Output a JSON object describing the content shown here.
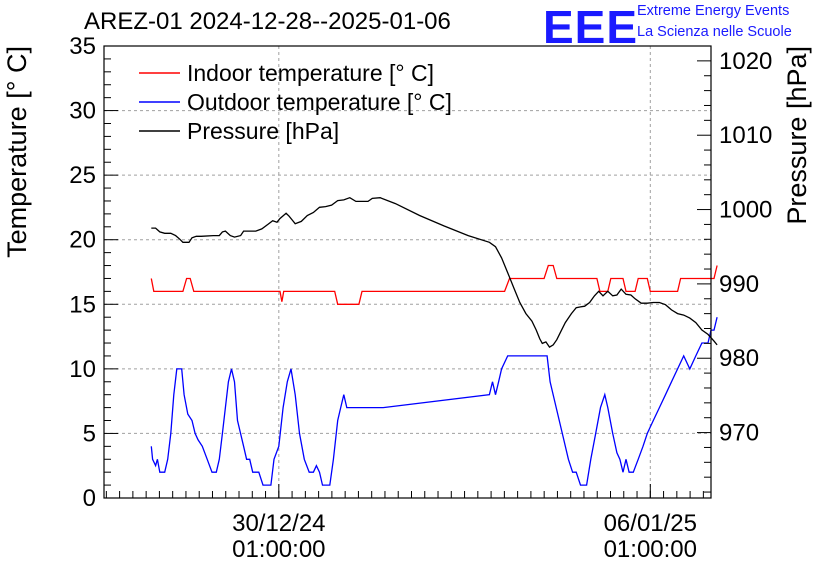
{
  "page": {
    "title": "AREZ-01 2024-12-28--2025-01-06",
    "logo_text": "EEE",
    "logo_line1": "Extreme Energy Events",
    "logo_line2": "La Scienza nelle Scuole"
  },
  "colors": {
    "indoor": "#ff0000",
    "outdoor": "#0000ff",
    "pressure": "#000000",
    "logo": "#1a1aff",
    "grid": "#a0a0a0"
  },
  "chart_data": {
    "type": "line",
    "title": "AREZ-01 2024-12-28--2025-01-06",
    "xlabel": "",
    "ylabel": "Temperature [° C]",
    "y2label": "Pressure [hPa]",
    "ylim": [
      0,
      35
    ],
    "y2lim": [
      961.2,
      1022.0
    ],
    "yticks": [
      0,
      5,
      10,
      15,
      20,
      25,
      30,
      35
    ],
    "y2ticks": [
      970,
      980,
      990,
      1000,
      1010,
      1020
    ],
    "xlim": [
      0,
      10
    ],
    "xticks": [
      {
        "x": 2.88,
        "label": "30/12/24",
        "label2": "01:00:00"
      },
      {
        "x": 9.0,
        "label": "06/01/25",
        "label2": "01:00:00"
      }
    ],
    "grid": true,
    "legend_position": "top-left",
    "legend": [
      "Indoor temperature [° C]",
      "Outdoor temperature [° C]",
      "Pressure [hPa]"
    ],
    "series": [
      {
        "name": "Indoor temperature [° C]",
        "axis": "left",
        "points": [
          [
            0.78,
            17
          ],
          [
            0.82,
            16
          ],
          [
            1.3,
            16
          ],
          [
            1.36,
            17
          ],
          [
            1.42,
            17
          ],
          [
            1.48,
            16
          ],
          [
            2.9,
            16
          ],
          [
            2.93,
            15.2
          ],
          [
            2.96,
            16
          ],
          [
            3.8,
            16
          ],
          [
            3.85,
            15
          ],
          [
            4.2,
            15
          ],
          [
            4.25,
            16
          ],
          [
            6.6,
            16
          ],
          [
            6.68,
            17
          ],
          [
            7.25,
            17
          ],
          [
            7.32,
            18
          ],
          [
            7.4,
            18
          ],
          [
            7.46,
            17
          ],
          [
            8.12,
            17
          ],
          [
            8.17,
            16
          ],
          [
            8.3,
            16
          ],
          [
            8.35,
            17
          ],
          [
            8.55,
            17
          ],
          [
            8.6,
            16
          ],
          [
            8.75,
            16
          ],
          [
            8.8,
            17
          ],
          [
            8.95,
            17
          ],
          [
            9.0,
            16
          ],
          [
            9.45,
            16
          ],
          [
            9.5,
            17
          ],
          [
            10.05,
            17
          ],
          [
            10.1,
            18
          ]
        ]
      },
      {
        "name": "Outdoor temperature [° C]",
        "axis": "left",
        "points": [
          [
            0.78,
            4
          ],
          [
            0.8,
            3
          ],
          [
            0.85,
            2.5
          ],
          [
            0.88,
            3
          ],
          [
            0.92,
            2
          ],
          [
            1.0,
            2
          ],
          [
            1.05,
            3
          ],
          [
            1.1,
            5
          ],
          [
            1.15,
            8
          ],
          [
            1.2,
            10
          ],
          [
            1.28,
            10
          ],
          [
            1.32,
            8
          ],
          [
            1.38,
            6.5
          ],
          [
            1.45,
            6
          ],
          [
            1.5,
            5
          ],
          [
            1.55,
            4.5
          ],
          [
            1.62,
            4
          ],
          [
            1.7,
            3
          ],
          [
            1.78,
            2
          ],
          [
            1.85,
            2
          ],
          [
            1.9,
            3
          ],
          [
            1.95,
            5
          ],
          [
            2.0,
            7
          ],
          [
            2.05,
            9
          ],
          [
            2.1,
            10
          ],
          [
            2.15,
            9
          ],
          [
            2.2,
            6
          ],
          [
            2.3,
            4
          ],
          [
            2.35,
            3
          ],
          [
            2.4,
            3
          ],
          [
            2.45,
            2
          ],
          [
            2.55,
            2
          ],
          [
            2.62,
            1
          ],
          [
            2.75,
            1
          ],
          [
            2.8,
            3
          ],
          [
            2.88,
            4
          ],
          [
            2.95,
            7
          ],
          [
            3.02,
            9
          ],
          [
            3.08,
            10
          ],
          [
            3.15,
            8
          ],
          [
            3.22,
            5
          ],
          [
            3.3,
            3
          ],
          [
            3.38,
            2
          ],
          [
            3.45,
            2
          ],
          [
            3.5,
            2.5
          ],
          [
            3.55,
            2
          ],
          [
            3.6,
            1
          ],
          [
            3.72,
            1
          ],
          [
            3.78,
            3
          ],
          [
            3.85,
            6
          ],
          [
            3.9,
            7
          ],
          [
            3.95,
            8
          ],
          [
            4.0,
            7
          ],
          [
            4.6,
            7
          ],
          [
            6.35,
            8
          ],
          [
            6.4,
            9
          ],
          [
            6.45,
            8
          ],
          [
            6.5,
            9
          ],
          [
            6.55,
            10
          ],
          [
            6.65,
            11
          ],
          [
            7.3,
            11
          ],
          [
            7.35,
            9
          ],
          [
            7.45,
            7
          ],
          [
            7.55,
            5
          ],
          [
            7.65,
            3
          ],
          [
            7.72,
            2
          ],
          [
            7.78,
            2
          ],
          [
            7.85,
            1
          ],
          [
            7.95,
            1
          ],
          [
            8.02,
            3
          ],
          [
            8.1,
            5
          ],
          [
            8.18,
            7
          ],
          [
            8.25,
            8
          ],
          [
            8.3,
            7
          ],
          [
            8.38,
            5
          ],
          [
            8.45,
            3.5
          ],
          [
            8.5,
            3
          ],
          [
            8.55,
            2
          ],
          [
            8.6,
            3
          ],
          [
            8.65,
            2
          ],
          [
            8.72,
            2
          ],
          [
            8.8,
            3
          ],
          [
            8.88,
            4
          ],
          [
            8.95,
            5
          ],
          [
            9.05,
            6
          ],
          [
            9.15,
            7
          ],
          [
            9.25,
            8
          ],
          [
            9.35,
            9
          ],
          [
            9.45,
            10
          ],
          [
            9.55,
            11
          ],
          [
            9.65,
            10
          ],
          [
            9.75,
            11
          ],
          [
            9.85,
            12
          ],
          [
            9.95,
            12
          ],
          [
            10.0,
            13
          ],
          [
            10.05,
            13
          ],
          [
            10.1,
            14
          ]
        ]
      },
      {
        "name": "Pressure [hPa]",
        "axis": "right",
        "points": [
          [
            0.78,
            997.5
          ],
          [
            0.85,
            997.5
          ],
          [
            0.92,
            997
          ],
          [
            1.0,
            996.8
          ],
          [
            1.1,
            996.8
          ],
          [
            1.18,
            996.5
          ],
          [
            1.25,
            996
          ],
          [
            1.3,
            995.6
          ],
          [
            1.4,
            995.6
          ],
          [
            1.45,
            996.2
          ],
          [
            1.52,
            996.4
          ],
          [
            1.6,
            996.4
          ],
          [
            1.8,
            996.5
          ],
          [
            1.9,
            996.5
          ],
          [
            1.95,
            997
          ],
          [
            2.0,
            997.1
          ],
          [
            2.08,
            996.5
          ],
          [
            2.15,
            996.3
          ],
          [
            2.25,
            996.5
          ],
          [
            2.3,
            997.1
          ],
          [
            2.5,
            997.1
          ],
          [
            2.6,
            997.4
          ],
          [
            2.7,
            998
          ],
          [
            2.78,
            998.5
          ],
          [
            2.85,
            998.3
          ],
          [
            2.9,
            998.8
          ],
          [
            3.0,
            999.5
          ],
          [
            3.05,
            999.1
          ],
          [
            3.1,
            998.6
          ],
          [
            3.15,
            998.1
          ],
          [
            3.25,
            998.4
          ],
          [
            3.35,
            999.2
          ],
          [
            3.45,
            999.6
          ],
          [
            3.55,
            1000.3
          ],
          [
            3.65,
            1000.4
          ],
          [
            3.75,
            1000.6
          ],
          [
            3.85,
            1001.2
          ],
          [
            3.95,
            1001.3
          ],
          [
            4.05,
            1001.6
          ],
          [
            4.15,
            1001.1
          ],
          [
            4.35,
            1001.1
          ],
          [
            4.42,
            1001.5
          ],
          [
            4.55,
            1001.6
          ],
          [
            4.8,
            1000.8
          ],
          [
            5.2,
            999.2
          ],
          [
            5.6,
            997.8
          ],
          [
            6.0,
            996.5
          ],
          [
            6.35,
            995.6
          ],
          [
            6.45,
            995
          ],
          [
            6.55,
            993.5
          ],
          [
            6.65,
            991.5
          ],
          [
            6.75,
            989.5
          ],
          [
            6.85,
            987.5
          ],
          [
            6.95,
            986
          ],
          [
            7.05,
            985
          ],
          [
            7.12,
            983.8
          ],
          [
            7.18,
            982.6
          ],
          [
            7.22,
            982
          ],
          [
            7.28,
            982.2
          ],
          [
            7.34,
            981.5
          ],
          [
            7.4,
            981.8
          ],
          [
            7.46,
            982.5
          ],
          [
            7.52,
            983.5
          ],
          [
            7.6,
            984.8
          ],
          [
            7.7,
            986
          ],
          [
            7.78,
            986.8
          ],
          [
            7.85,
            986.9
          ],
          [
            7.92,
            987
          ],
          [
            8.0,
            987.5
          ],
          [
            8.08,
            988.4
          ],
          [
            8.15,
            989
          ],
          [
            8.22,
            988.4
          ],
          [
            8.3,
            989
          ],
          [
            8.38,
            988.4
          ],
          [
            8.45,
            988.5
          ],
          [
            8.52,
            989.3
          ],
          [
            8.6,
            988.6
          ],
          [
            8.68,
            988.5
          ],
          [
            8.75,
            988
          ],
          [
            8.85,
            987.4
          ],
          [
            8.95,
            987.4
          ],
          [
            9.05,
            987.5
          ],
          [
            9.15,
            987.5
          ],
          [
            9.25,
            987.2
          ],
          [
            9.35,
            986.5
          ],
          [
            9.45,
            986
          ],
          [
            9.55,
            985.8
          ],
          [
            9.65,
            985.4
          ],
          [
            9.75,
            984.8
          ],
          [
            9.85,
            983.8
          ],
          [
            9.95,
            983.2
          ],
          [
            10.05,
            982.3
          ],
          [
            10.1,
            981.8
          ]
        ]
      }
    ]
  }
}
